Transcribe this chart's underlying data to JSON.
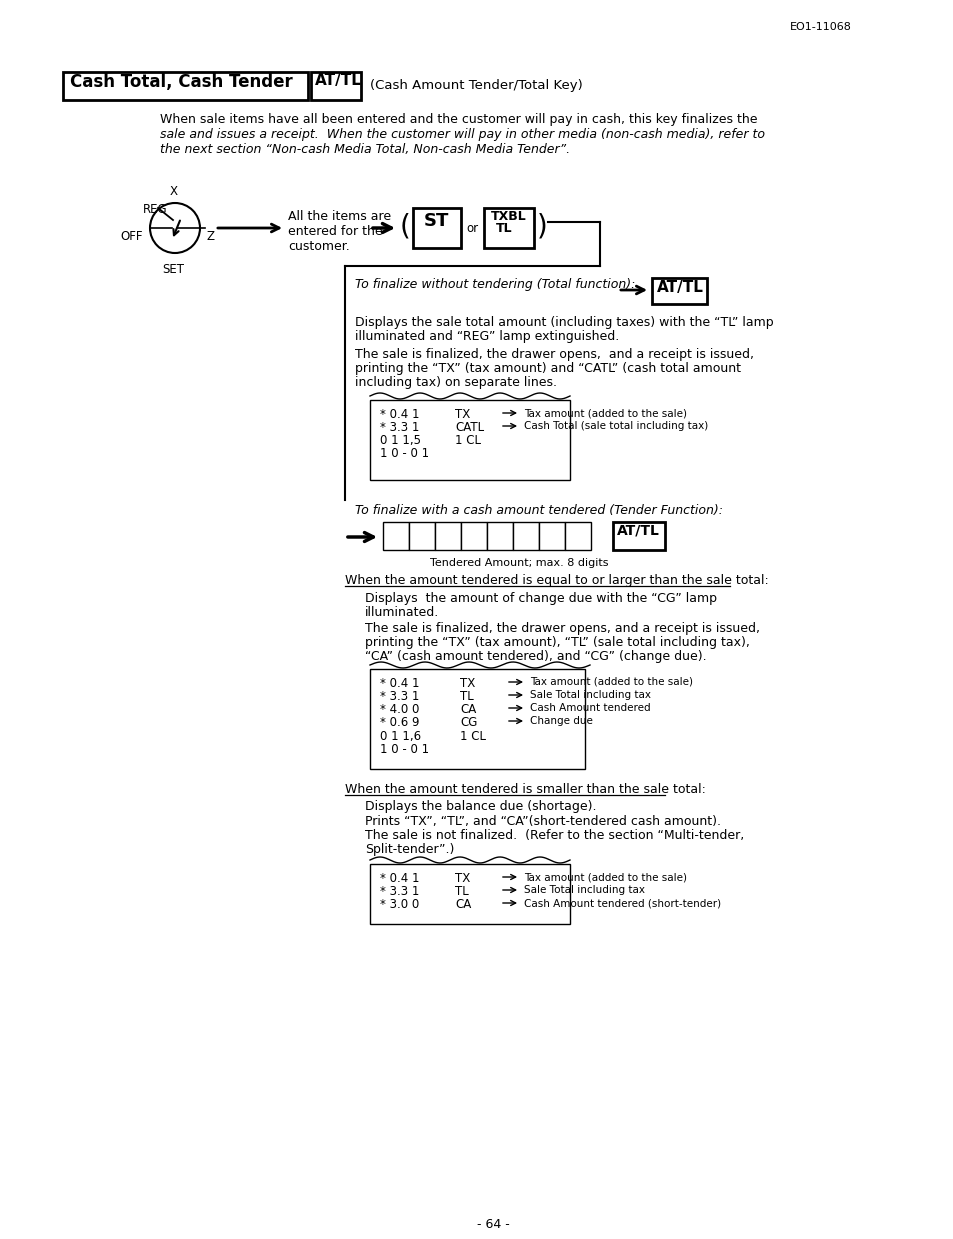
{
  "page_ref": "EO1-11068",
  "page_number": "- 64 -",
  "title_main": "Cash Total, Cash Tender",
  "title_key": "AT/TL",
  "title_desc": "(Cash Amount Tender/Total Key)",
  "intro_line1": "When sale items have all been entered and the customer will pay in cash, this key finalizes the",
  "intro_line2": "sale and issues a receipt.  When the customer will pay in other media (non-cash media), refer to",
  "intro_line3": "the next section “Non-cash Media Total, Non-cash Media Tender”.",
  "flow_text": "All the items are\nentered for the\ncustomer.",
  "section1_italic": "To finalize without tendering (Total function):",
  "section1_text1a": "Displays the sale total amount (including taxes) with the “TL” lamp",
  "section1_text1b": "illuminated and “REG” lamp extinguished.",
  "section1_text2a": "The sale is finalized, the drawer opens,  and a receipt is issued,",
  "section1_text2b": "printing the “TX” (tax amount) and “CATL” (cash total amount",
  "section1_text2c": "including tax) on separate lines.",
  "receipt1": [
    {
      "vals": "* 0.4 1",
      "code": "TX",
      "ann": "Tax amount (added to the sale)"
    },
    {
      "vals": "* 3.3 1",
      "code": "CATL",
      "ann": "Cash Total (sale total including tax)"
    },
    {
      "vals": "0 1 1,5",
      "code": "1 CL",
      "ann": ""
    },
    {
      "vals": "1 0 - 0 1",
      "code": "",
      "ann": ""
    }
  ],
  "section2_italic": "To finalize with a cash amount tendered (Tender Function):",
  "tender_label": "Tendered Amount; max. 8 digits",
  "section3_head": "When the amount tendered is equal to or larger than the sale total:",
  "section3_text1a": "Displays  the amount of change due with the “CG” lamp",
  "section3_text1b": "illuminated.",
  "section3_text2a": "The sale is finalized, the drawer opens, and a receipt is issued,",
  "section3_text2b": "printing the “TX” (tax amount), “TL” (sale total including tax),",
  "section3_text2c": "“CA” (cash amount tendered), and “CG” (change due).",
  "receipt2": [
    {
      "vals": "* 0.4 1",
      "code": "TX",
      "ann": "Tax amount (added to the sale)"
    },
    {
      "vals": "* 3.3 1",
      "code": "TL",
      "ann": "Sale Total including tax"
    },
    {
      "vals": "* 4.0 0",
      "code": "CA",
      "ann": "Cash Amount tendered"
    },
    {
      "vals": "* 0.6 9",
      "code": "CG",
      "ann": "Change due"
    },
    {
      "vals": "0 1 1,6",
      "code": "1 CL",
      "ann": ""
    },
    {
      "vals": "1 0 - 0 1",
      "code": "",
      "ann": ""
    }
  ],
  "section4_head": "When the amount tendered is smaller than the sale total:",
  "section4_text1": "Displays the balance due (shortage).",
  "section4_text2a": "Prints “TX”, “TL”, and “CA”(short-tendered cash amount).",
  "section4_text2b": "The sale is not finalized.  (Refer to the section “Multi-tender,",
  "section4_text2c": "Split-tender”.)",
  "receipt3": [
    {
      "vals": "* 0.4 1",
      "code": "TX",
      "ann": "Tax amount (added to the sale)"
    },
    {
      "vals": "* 3.3 1",
      "code": "TL",
      "ann": "Sale Total including tax"
    },
    {
      "vals": "* 3.0 0",
      "code": "CA",
      "ann": "Cash Amount tendered (short-tender)"
    }
  ]
}
